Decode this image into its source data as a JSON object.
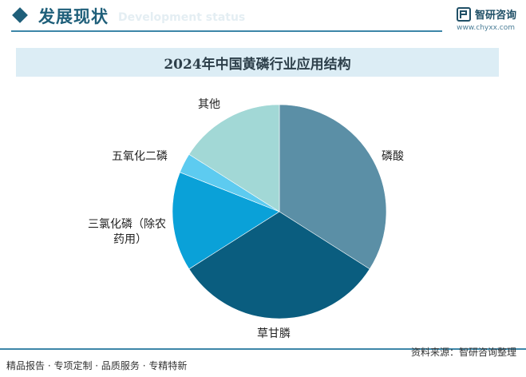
{
  "header": {
    "title": "发展现状",
    "subtitle": "Development status",
    "brand": "智研咨询",
    "url": "www.chyxx.com"
  },
  "footer": {
    "left": "精品报告 · 专项定制 · 品质服务 · 专精特新",
    "right": "资料来源：智研咨询整理"
  },
  "chart_data": {
    "type": "pie",
    "title": "2024年中国黄磷行业应用结构",
    "start_angle_deg": 0,
    "direction": "clockwise",
    "slices": [
      {
        "label": "磷酸",
        "value": 34,
        "color": "#5b8fa6"
      },
      {
        "label": "草甘膦",
        "value": 32,
        "color": "#0a5d7f"
      },
      {
        "label": "三氯化磷（除农药用）",
        "label_lines": [
          "三氯化磷（除农",
          "药用）"
        ],
        "value": 15,
        "color": "#0aa1d8"
      },
      {
        "label": "五氧化二磷",
        "value": 3,
        "color": "#5dcbf0"
      },
      {
        "label": "其他",
        "value": 16,
        "color": "#a2d8d6"
      }
    ]
  }
}
